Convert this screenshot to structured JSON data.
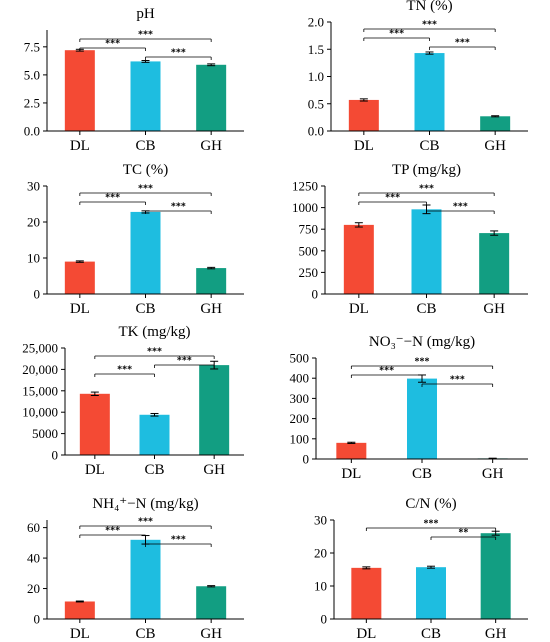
{
  "colors": {
    "DL": "#f44a34",
    "CB": "#1ebde0",
    "GH": "#129e82"
  },
  "chart_data": [
    {
      "type": "bar",
      "title": "pH",
      "categories": [
        "DL",
        "CB",
        "GH"
      ],
      "values": [
        7.2,
        6.2,
        5.9
      ],
      "errors": [
        0.08,
        0.08,
        0.08
      ],
      "ylim": [
        0,
        9
      ],
      "yticks": [
        0,
        2.5,
        5,
        7.5
      ],
      "ytick_labels": [
        "0.0",
        "2.5",
        "5.0",
        "7.5"
      ],
      "significance": [
        {
          "from": 0,
          "to": 2,
          "label": "***"
        },
        {
          "from": 0,
          "to": 1,
          "label": "***"
        },
        {
          "from": 1,
          "to": 2,
          "label": "***"
        }
      ]
    },
    {
      "type": "bar",
      "title": "TN (%)",
      "categories": [
        "DL",
        "CB",
        "GH"
      ],
      "values": [
        0.57,
        1.43,
        0.27
      ],
      "errors": [
        0.02,
        0.02,
        0.01
      ],
      "ylim": [
        0,
        2
      ],
      "yticks": [
        0,
        0.5,
        1,
        1.5,
        2
      ],
      "ytick_labels": [
        "0.0",
        "0.5",
        "1.0",
        "1.5",
        "2.0"
      ],
      "significance": [
        {
          "from": 0,
          "to": 2,
          "label": "***"
        },
        {
          "from": 0,
          "to": 1,
          "label": "***"
        },
        {
          "from": 1,
          "to": 2,
          "label": "***"
        }
      ]
    },
    {
      "type": "bar",
      "title": "TC (%)",
      "categories": [
        "DL",
        "CB",
        "GH"
      ],
      "values": [
        9,
        22.8,
        7.2
      ],
      "errors": [
        0.2,
        0.3,
        0.2
      ],
      "ylim": [
        0,
        30
      ],
      "yticks": [
        0,
        10,
        20,
        30
      ],
      "ytick_labels": [
        "0",
        "10",
        "20",
        "30"
      ],
      "significance": [
        {
          "from": 0,
          "to": 2,
          "label": "***"
        },
        {
          "from": 0,
          "to": 1,
          "label": "***"
        },
        {
          "from": 1,
          "to": 2,
          "label": "***"
        }
      ]
    },
    {
      "type": "bar",
      "title": "TP (mg/kg)",
      "categories": [
        "DL",
        "CB",
        "GH"
      ],
      "values": [
        800,
        980,
        705
      ],
      "errors": [
        25,
        50,
        25
      ],
      "ylim": [
        0,
        1250
      ],
      "yticks": [
        0,
        250,
        500,
        750,
        1000,
        1250
      ],
      "ytick_labels": [
        "0",
        "250",
        "500",
        "750",
        "1000",
        "1250"
      ],
      "significance": [
        {
          "from": 0,
          "to": 2,
          "label": "***"
        },
        {
          "from": 0,
          "to": 1,
          "label": "***"
        },
        {
          "from": 1,
          "to": 2,
          "label": "***"
        }
      ]
    },
    {
      "type": "bar",
      "title": "TK (mg/kg)",
      "categories": [
        "DL",
        "CB",
        "GH"
      ],
      "values": [
        14300,
        9400,
        21000
      ],
      "errors": [
        400,
        300,
        900
      ],
      "ylim": [
        0,
        25000
      ],
      "yticks": [
        0,
        5000,
        10000,
        15000,
        20000,
        25000
      ],
      "ytick_labels": [
        "0",
        "5000",
        "10,000",
        "15,000",
        "20,000",
        "25,000"
      ],
      "significance": [
        {
          "from": 0,
          "to": 2,
          "label": "***"
        },
        {
          "from": 1,
          "to": 2,
          "label": "***"
        },
        {
          "from": 0,
          "to": 1,
          "label": "***"
        }
      ]
    },
    {
      "type": "bar",
      "title": "NO₃⁻−N (mg/kg)",
      "categories": [
        "DL",
        "CB",
        "GH"
      ],
      "values": [
        80,
        398,
        3
      ],
      "errors": [
        3,
        18,
        1
      ],
      "ylim": [
        0,
        500
      ],
      "yticks": [
        0,
        100,
        200,
        300,
        400,
        500
      ],
      "ytick_labels": [
        "0",
        "100",
        "200",
        "300",
        "400",
        "500"
      ],
      "significance": [
        {
          "from": 0,
          "to": 2,
          "label": "***"
        },
        {
          "from": 0,
          "to": 1,
          "label": "***"
        },
        {
          "from": 1,
          "to": 2,
          "label": "***"
        }
      ]
    },
    {
      "type": "bar",
      "title": "NH₄⁺−N (mg/kg)",
      "categories": [
        "DL",
        "CB",
        "GH"
      ],
      "values": [
        11.5,
        52,
        21.5
      ],
      "errors": [
        0.3,
        2.8,
        0.4
      ],
      "ylim": [
        0,
        65
      ],
      "yticks": [
        0,
        20,
        40,
        60
      ],
      "ytick_labels": [
        "0",
        "20",
        "40",
        "60"
      ],
      "significance": [
        {
          "from": 0,
          "to": 2,
          "label": "***"
        },
        {
          "from": 0,
          "to": 1,
          "label": "***"
        },
        {
          "from": 1,
          "to": 2,
          "label": "***"
        }
      ]
    },
    {
      "type": "bar",
      "title": "C/N (%)",
      "categories": [
        "DL",
        "CB",
        "GH"
      ],
      "values": [
        15.5,
        15.7,
        26
      ],
      "errors": [
        0.3,
        0.3,
        0.6
      ],
      "ylim": [
        0,
        30
      ],
      "yticks": [
        0,
        10,
        20,
        30
      ],
      "ytick_labels": [
        "0",
        "10",
        "20",
        "30"
      ],
      "significance": [
        {
          "from": 0,
          "to": 2,
          "label": "***"
        },
        {
          "from": 1,
          "to": 2,
          "label": "**"
        }
      ]
    }
  ]
}
